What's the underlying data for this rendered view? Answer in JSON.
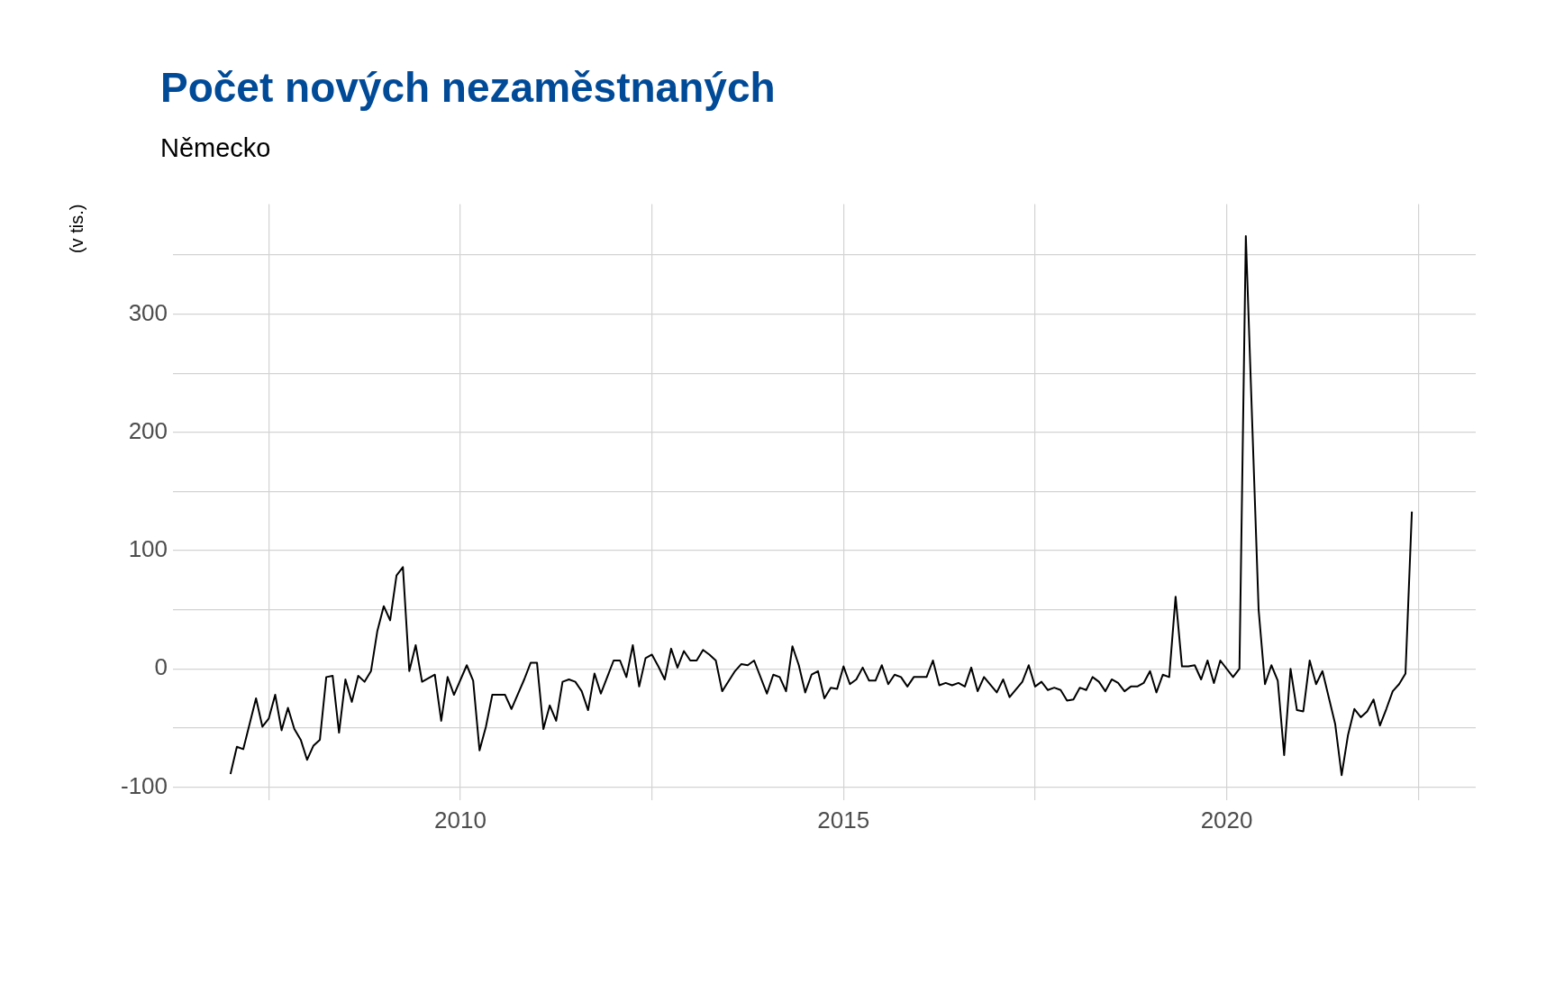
{
  "chart_data": {
    "type": "line",
    "title": "Počet nových nezaměstnaných",
    "subtitle": "Německo",
    "ylabel": "(v tis.)",
    "x": [
      "2007-01",
      "2007-02",
      "2007-03",
      "2007-05",
      "2007-06",
      "2007-07",
      "2007-08",
      "2007-09",
      "2007-10",
      "2007-11",
      "2007-12",
      "2008-01",
      "2008-02",
      "2008-03",
      "2008-04",
      "2008-05",
      "2008-06",
      "2008-07",
      "2008-08",
      "2008-09",
      "2008-10",
      "2008-11",
      "2008-12",
      "2009-01",
      "2009-02",
      "2009-03",
      "2009-04",
      "2009-05",
      "2009-06",
      "2009-07",
      "2009-09",
      "2009-10",
      "2009-11",
      "2009-12",
      "2010-02",
      "2010-03",
      "2010-04",
      "2010-05",
      "2010-06",
      "2010-08",
      "2010-09",
      "2010-11",
      "2010-12",
      "2011-01",
      "2011-02",
      "2011-03",
      "2011-04",
      "2011-05",
      "2011-06",
      "2011-07",
      "2011-08",
      "2011-09",
      "2011-10",
      "2011-11",
      "2011-12",
      "2012-01",
      "2012-02",
      "2012-03",
      "2012-04",
      "2012-05",
      "2012-06",
      "2012-07",
      "2012-08",
      "2012-09",
      "2012-10",
      "2012-11",
      "2012-12",
      "2013-01",
      "2013-02",
      "2013-03",
      "2013-04",
      "2013-05",
      "2013-06",
      "2013-08",
      "2013-09",
      "2013-10",
      "2013-11",
      "2014-01",
      "2014-02",
      "2014-03",
      "2014-04",
      "2014-05",
      "2014-06",
      "2014-07",
      "2014-08",
      "2014-09",
      "2014-10",
      "2014-11",
      "2014-12",
      "2015-01",
      "2015-02",
      "2015-03",
      "2015-04",
      "2015-05",
      "2015-06",
      "2015-07",
      "2015-08",
      "2015-09",
      "2015-10",
      "2015-11",
      "2015-12",
      "2016-02",
      "2016-03",
      "2016-04",
      "2016-05",
      "2016-06",
      "2016-07",
      "2016-08",
      "2016-09",
      "2016-10",
      "2016-11",
      "2017-01",
      "2017-02",
      "2017-03",
      "2017-05",
      "2017-06",
      "2017-07",
      "2017-08",
      "2017-09",
      "2017-10",
      "2017-11",
      "2017-12",
      "2018-01",
      "2018-02",
      "2018-03",
      "2018-04",
      "2018-05",
      "2018-06",
      "2018-07",
      "2018-08",
      "2018-09",
      "2018-10",
      "2018-11",
      "2018-12",
      "2019-01",
      "2019-02",
      "2019-03",
      "2019-04",
      "2019-05",
      "2019-06",
      "2019-07",
      "2019-08",
      "2019-09",
      "2019-10",
      "2019-11",
      "2019-12",
      "2020-02",
      "2020-03",
      "2020-04",
      "2020-06",
      "2020-07",
      "2020-08",
      "2020-09",
      "2020-10",
      "2020-11",
      "2020-12",
      "2021-01",
      "2021-02",
      "2021-03",
      "2021-04",
      "2021-06",
      "2021-07",
      "2021-08",
      "2021-09",
      "2021-10",
      "2021-11",
      "2021-12",
      "2022-01",
      "2022-02",
      "2022-03",
      "2022-04",
      "2022-05",
      "2022-06"
    ],
    "series": [
      {
        "color": "#000000",
        "values": [
          -89,
          -66,
          -68,
          -25,
          -49,
          -42,
          -22,
          -52,
          -33,
          -51,
          -60,
          -77,
          -65,
          -60,
          -7,
          -6,
          -54,
          -9,
          -28,
          -6,
          -11,
          -2,
          32,
          53,
          41,
          79,
          86,
          -2,
          20,
          -11,
          -5,
          -44,
          -7,
          -22,
          3,
          -10,
          -69,
          -49,
          -22,
          -22,
          -34,
          -9,
          5,
          5,
          -51,
          -31,
          -44,
          -11,
          -9,
          -11,
          -19,
          -35,
          -4,
          -21,
          -7,
          7,
          7,
          -7,
          20,
          -15,
          9,
          12,
          2,
          -9,
          17,
          1,
          15,
          7,
          7,
          16,
          12,
          7,
          -19,
          -2,
          4,
          3,
          7,
          -21,
          -5,
          -7,
          -19,
          19,
          3,
          -20,
          -5,
          -2,
          -25,
          -16,
          -17,
          2,
          -13,
          -9,
          1,
          -10,
          -10,
          3,
          -13,
          -5,
          -7,
          -15,
          -7,
          -7,
          7,
          -14,
          -12,
          -14,
          -12,
          -15,
          1,
          -19,
          -7,
          -20,
          -9,
          -24,
          -11,
          3,
          -15,
          -11,
          -18,
          -16,
          -18,
          -27,
          -26,
          -16,
          -18,
          -7,
          -11,
          -19,
          -9,
          -12,
          -19,
          -15,
          -15,
          -12,
          -2,
          -20,
          -5,
          -7,
          61,
          2,
          2,
          3,
          -9,
          7,
          -12,
          7,
          -7,
          0,
          366,
          50,
          -13,
          3,
          -10,
          -73,
          0,
          -35,
          -36,
          7,
          -13,
          -2,
          -47,
          -90,
          -56,
          -34,
          -41,
          -36,
          -26,
          -48,
          -34,
          -19,
          -13,
          -4,
          133
        ]
      }
    ],
    "xlim": [
      "2006-04",
      "2023-04"
    ],
    "xticks": [
      "2010",
      "2015",
      "2020"
    ],
    "ylim": [
      -111,
      393
    ],
    "yticks": [
      -100,
      0,
      100,
      200,
      300
    ],
    "grid": true,
    "legend": false,
    "marker": "none",
    "line_style": "solid"
  }
}
